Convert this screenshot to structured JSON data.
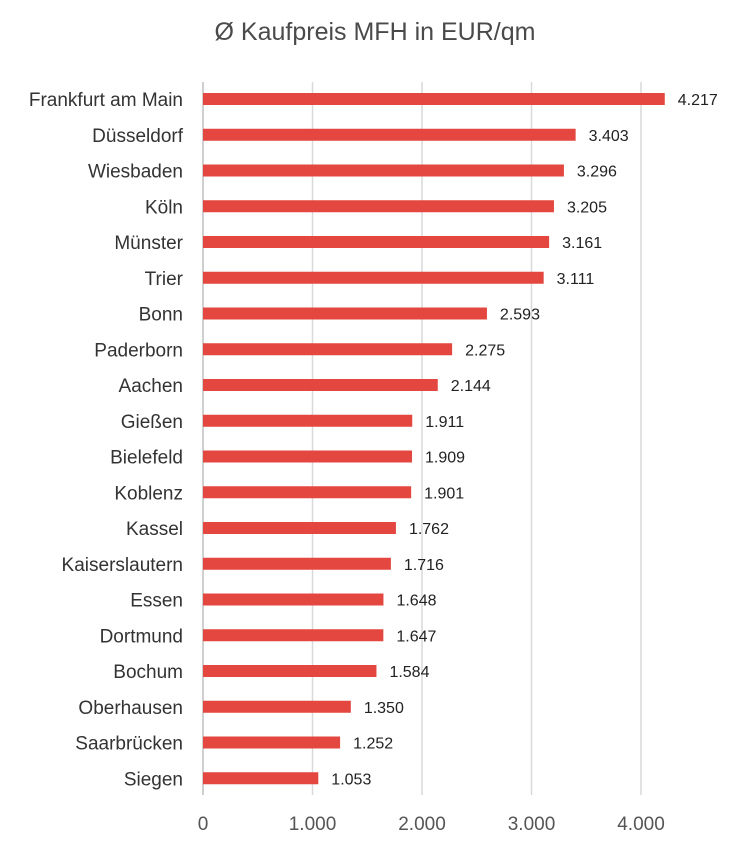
{
  "chart_data": {
    "type": "bar",
    "orientation": "horizontal",
    "title": "Ø Kaufpreis MFH in EUR/qm",
    "categories": [
      "Frankfurt am Main",
      "Düsseldorf",
      "Wiesbaden",
      "Köln",
      "Münster",
      "Trier",
      "Bonn",
      "Paderborn",
      "Aachen",
      "Gießen",
      "Bielefeld",
      "Koblenz",
      "Kassel",
      "Kaiserslautern",
      "Essen",
      "Dortmund",
      "Bochum",
      "Oberhausen",
      "Saarbrücken",
      "Siegen"
    ],
    "values": [
      4217,
      3403,
      3296,
      3205,
      3161,
      3111,
      2593,
      2275,
      2144,
      1911,
      1909,
      1901,
      1762,
      1716,
      1648,
      1647,
      1584,
      1350,
      1252,
      1053
    ],
    "value_labels": [
      "4.217",
      "3.403",
      "3.296",
      "3.205",
      "3.161",
      "3.111",
      "2.593",
      "2.275",
      "2.144",
      "1.911",
      "1.909",
      "1.901",
      "1.762",
      "1.716",
      "1.648",
      "1.647",
      "1.584",
      "1.350",
      "1.252",
      "1.053"
    ],
    "xlim": [
      0,
      4300
    ],
    "xticks": [
      0,
      1000,
      2000,
      3000,
      4000
    ],
    "xtick_labels": [
      "0",
      "1.000",
      "2.000",
      "3.000",
      "4.000"
    ],
    "grid": "vertical",
    "legend": "none",
    "bar_color": "#e3473f",
    "grid_color": "#d9d9d9"
  }
}
